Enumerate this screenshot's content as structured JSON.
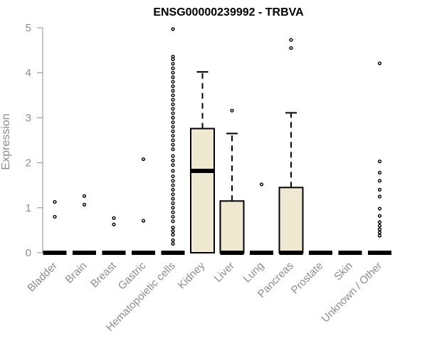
{
  "chart_data": {
    "type": "box",
    "title": "ENSG00000239992 - TRBVA",
    "xlabel": "",
    "ylabel": "Expression",
    "ylim": [
      0,
      5
    ],
    "yticks": [
      0,
      1,
      2,
      3,
      4,
      5
    ],
    "grid": false,
    "box_fill": "#efe9d2",
    "categories": [
      "Bladder",
      "Brain",
      "Breast",
      "Gastric",
      "Hematopoietic cells",
      "Kidney",
      "Liver",
      "Lung",
      "Pancreas",
      "Prostate",
      "Skin",
      "Unknown / Other"
    ],
    "boxes": [
      {
        "category": "Bladder",
        "min": 0,
        "q1": 0,
        "median": 0,
        "q3": 0,
        "max": 0,
        "outliers": [
          0.8,
          1.13
        ]
      },
      {
        "category": "Brain",
        "min": 0,
        "q1": 0,
        "median": 0,
        "q3": 0,
        "max": 0,
        "outliers": [
          1.07,
          1.26
        ]
      },
      {
        "category": "Breast",
        "min": 0,
        "q1": 0,
        "median": 0,
        "q3": 0,
        "max": 0,
        "outliers": [
          0.63,
          0.77
        ]
      },
      {
        "category": "Gastric",
        "min": 0,
        "q1": 0,
        "median": 0,
        "q3": 0,
        "max": 0,
        "outliers": [
          0.71,
          2.08
        ]
      },
      {
        "category": "Hematopoietic cells",
        "min": 0,
        "q1": 0,
        "median": 0,
        "q3": 0,
        "max": 0,
        "outliers": [
          0.2,
          0.28,
          0.4,
          0.48,
          0.56,
          0.7,
          0.8,
          0.9,
          1.0,
          1.1,
          1.2,
          1.3,
          1.4,
          1.5,
          1.6,
          1.7,
          1.82,
          1.95,
          2.05,
          2.15,
          2.3,
          2.4,
          2.5,
          2.6,
          2.7,
          2.8,
          2.9,
          3.0,
          3.1,
          3.2,
          3.3,
          3.4,
          3.5,
          3.6,
          3.7,
          3.8,
          3.9,
          4.0,
          4.1,
          4.2,
          4.3,
          4.36,
          4.97
        ]
      },
      {
        "category": "Kidney",
        "min": 0,
        "q1": 0,
        "median": 1.82,
        "q3": 2.76,
        "max": 4.02,
        "outliers": []
      },
      {
        "category": "Liver",
        "min": 0,
        "q1": 0,
        "median": 0,
        "q3": 1.15,
        "max": 2.65,
        "outliers": [
          3.16
        ]
      },
      {
        "category": "Lung",
        "min": 0,
        "q1": 0,
        "median": 0,
        "q3": 0,
        "max": 0,
        "outliers": [
          1.52
        ]
      },
      {
        "category": "Pancreas",
        "min": 0,
        "q1": 0,
        "median": 0,
        "q3": 1.45,
        "max": 3.11,
        "outliers": [
          4.55,
          4.73
        ]
      },
      {
        "category": "Prostate",
        "min": 0,
        "q1": 0,
        "median": 0,
        "q3": 0,
        "max": 0,
        "outliers": []
      },
      {
        "category": "Skin",
        "min": 0,
        "q1": 0,
        "median": 0,
        "q3": 0,
        "max": 0,
        "outliers": []
      },
      {
        "category": "Unknown / Other",
        "min": 0,
        "q1": 0,
        "median": 0,
        "q3": 0,
        "max": 0,
        "outliers": [
          0.38,
          0.45,
          0.52,
          0.6,
          0.68,
          0.82,
          0.98,
          1.25,
          1.4,
          1.6,
          1.78,
          2.03,
          4.21
        ]
      }
    ]
  }
}
